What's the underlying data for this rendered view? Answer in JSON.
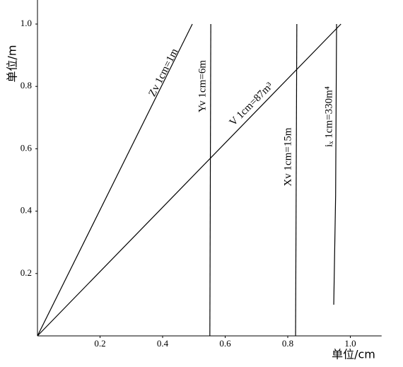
{
  "chart_data": {
    "type": "line",
    "xlabel": "单位/cm",
    "ylabel": "单位/m",
    "xlim": [
      0,
      1.1
    ],
    "ylim": [
      0,
      1.08
    ],
    "xticks": [
      0.2,
      0.4,
      0.6,
      0.8,
      {
        "value": 1,
        "label": "1.0"
      }
    ],
    "yticks": [
      0.2,
      0.4,
      0.6,
      0.8,
      {
        "value": 1,
        "label": "1.0"
      }
    ],
    "color": "#000000",
    "series": [
      {
        "name": "Zv 1cm=1m",
        "x": [
          0,
          0.495
        ],
        "values": [
          0,
          1.0
        ]
      },
      {
        "name": "Yv 1cm=6m",
        "x": [
          0.551,
          0.554
        ],
        "values": [
          0,
          1.0
        ]
      },
      {
        "name": "V 1cm=87m³",
        "x": [
          0,
          0.97
        ],
        "values": [
          0,
          1.0
        ]
      },
      {
        "name": "Xv 1cm=15m",
        "x": [
          0.825,
          0.829
        ],
        "values": [
          0,
          1.0
        ]
      },
      {
        "name": "iₓ 1cm=330m⁴",
        "x": [
          0.947,
          0.953,
          0.956
        ],
        "values": [
          0.1,
          0.45,
          1.0
        ]
      }
    ]
  }
}
